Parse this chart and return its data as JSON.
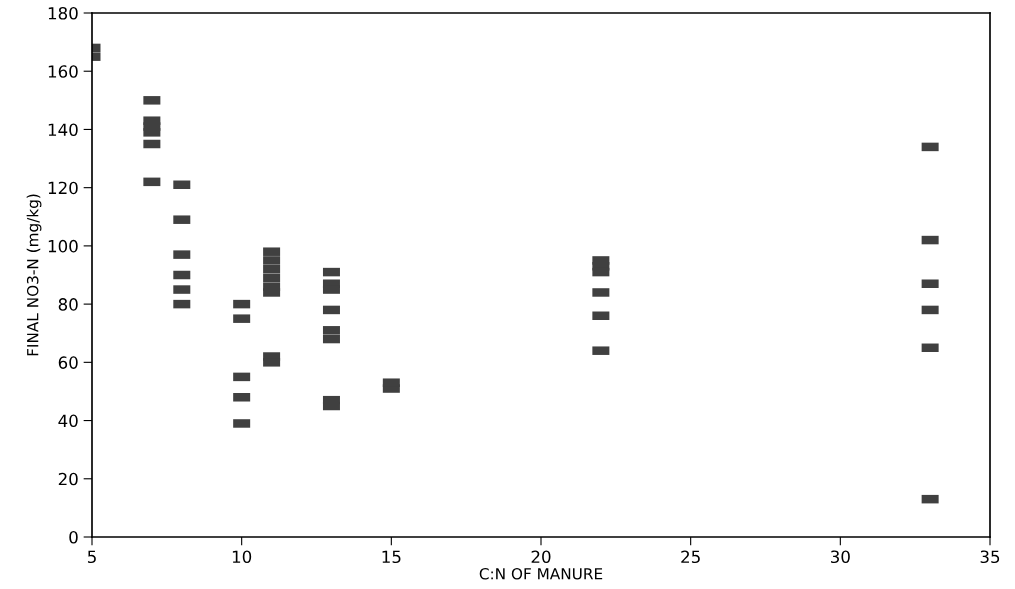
{
  "chart_data": {
    "type": "scatter",
    "xlabel": "C:N OF MANURE",
    "ylabel": "FINAL NO3-N (mg/kg)",
    "x": [
      5,
      5,
      7,
      7,
      7,
      7,
      7,
      7,
      8,
      8,
      8,
      8,
      8,
      8,
      10,
      10,
      10,
      10,
      10,
      11,
      11,
      11,
      11,
      11,
      11,
      11,
      11,
      13,
      13,
      13,
      13,
      13,
      13,
      13,
      13,
      15,
      15,
      22,
      22,
      22,
      22,
      22,
      22,
      33,
      33,
      33,
      33,
      33,
      33
    ],
    "values": [
      165,
      168,
      150,
      143,
      141,
      139,
      135,
      122,
      121,
      109,
      97,
      90,
      85,
      80,
      80,
      75,
      55,
      48,
      39,
      98,
      95,
      92,
      89,
      86,
      84,
      62,
      60,
      91,
      87,
      85,
      78,
      71,
      68,
      47,
      45,
      51,
      53,
      95,
      93,
      91,
      84,
      76,
      64,
      134,
      102,
      87,
      78,
      65,
      13
    ],
    "color": "#404040",
    "marker": "square",
    "xlim": [
      5,
      35
    ],
    "xticks": [
      5,
      10,
      15,
      20,
      25,
      30,
      35
    ],
    "ylim": [
      0,
      180
    ],
    "yticks": [
      0,
      20,
      40,
      60,
      80,
      100,
      120,
      140,
      160,
      180
    ]
  }
}
